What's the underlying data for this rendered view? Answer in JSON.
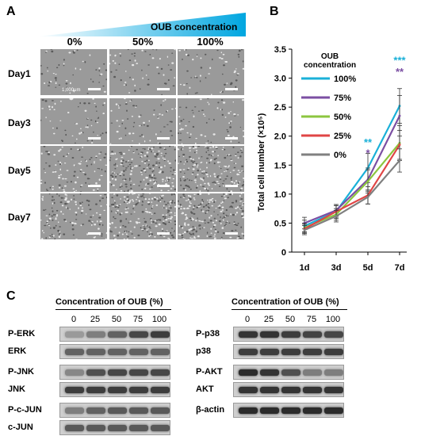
{
  "panelA": {
    "letter": "A",
    "gradient_label": "OUB concentration",
    "columns": [
      "0%",
      "50%",
      "100%"
    ],
    "rows": [
      "Day1",
      "Day3",
      "Day5",
      "Day7"
    ],
    "scale_label": "1,000μm",
    "cell_density": [
      [
        0.1,
        0.12,
        0.12
      ],
      [
        0.14,
        0.15,
        0.16
      ],
      [
        0.3,
        0.75,
        0.7
      ],
      [
        0.45,
        0.8,
        0.82
      ]
    ]
  },
  "panelB": {
    "letter": "B",
    "chart_data": {
      "type": "line",
      "x": [
        "1d",
        "3d",
        "5d",
        "7d"
      ],
      "ylabel": "Total cell number  (×10⁵)",
      "ylim": [
        0,
        3.5
      ],
      "yticks": [
        "0",
        "0.5",
        "1.0",
        "1.5",
        "2.0",
        "2.5",
        "3.0",
        "3.5"
      ],
      "legend_title": "OUB concentration",
      "legend_position": "top-left",
      "series": [
        {
          "name": "100%",
          "color": "#1ab0d8",
          "values": [
            0.45,
            0.7,
            1.45,
            2.52
          ],
          "err": [
            0.1,
            0.1,
            0.25,
            0.3
          ]
        },
        {
          "name": "75%",
          "color": "#7b4fa3",
          "values": [
            0.5,
            0.72,
            1.25,
            2.35
          ],
          "err": [
            0.1,
            0.1,
            0.2,
            0.35
          ]
        },
        {
          "name": "50%",
          "color": "#8cc63f",
          "values": [
            0.42,
            0.65,
            1.22,
            1.88
          ],
          "err": [
            0.08,
            0.1,
            0.2,
            0.3
          ]
        },
        {
          "name": "25%",
          "color": "#e04545",
          "values": [
            0.4,
            0.7,
            0.98,
            1.85
          ],
          "err": [
            0.08,
            0.12,
            0.15,
            0.25
          ]
        },
        {
          "name": "0%",
          "color": "#808080",
          "values": [
            0.38,
            0.62,
            0.95,
            1.58
          ],
          "err": [
            0.08,
            0.1,
            0.12,
            0.2
          ]
        }
      ],
      "annotations": [
        {
          "x": "5d",
          "text": "**",
          "color": "#1ab0d8",
          "y": 1.83
        },
        {
          "x": "5d",
          "text": "*",
          "color": "#7b4fa3",
          "y": 1.65
        },
        {
          "x": "7d",
          "text": "***",
          "color": "#1ab0d8",
          "y": 3.25
        },
        {
          "x": "7d",
          "text": "**",
          "color": "#7b4fa3",
          "y": 3.05
        }
      ]
    }
  },
  "panelC": {
    "letter": "C",
    "left": {
      "title": "Concentration of OUB (%)",
      "concentrations": [
        "0",
        "25",
        "50",
        "75",
        "100"
      ],
      "bands": [
        {
          "label": "P-ERK",
          "intensity": [
            0.25,
            0.4,
            0.55,
            0.7,
            0.75
          ]
        },
        {
          "label": "ERK",
          "intensity": [
            0.55,
            0.55,
            0.55,
            0.55,
            0.55
          ]
        },
        {
          "label": "P-JNK",
          "intensity": [
            0.35,
            0.65,
            0.7,
            0.7,
            0.7
          ]
        },
        {
          "label": "JNK",
          "intensity": [
            0.75,
            0.75,
            0.75,
            0.75,
            0.75
          ]
        },
        {
          "label": "P-c-JUN",
          "intensity": [
            0.4,
            0.55,
            0.6,
            0.6,
            0.6
          ]
        },
        {
          "label": "c-JUN",
          "intensity": [
            0.6,
            0.6,
            0.6,
            0.6,
            0.6
          ]
        }
      ]
    },
    "right": {
      "title": "Concentration of OUB (%)",
      "concentrations": [
        "0",
        "25",
        "50",
        "75",
        "100"
      ],
      "bands": [
        {
          "label": "P-p38",
          "intensity": [
            0.8,
            0.8,
            0.75,
            0.72,
            0.7
          ]
        },
        {
          "label": "p38",
          "intensity": [
            0.75,
            0.75,
            0.75,
            0.75,
            0.75
          ]
        },
        {
          "label": "P-AKT",
          "intensity": [
            0.85,
            0.8,
            0.65,
            0.4,
            0.4
          ]
        },
        {
          "label": "AKT",
          "intensity": [
            0.8,
            0.8,
            0.8,
            0.8,
            0.8
          ]
        },
        {
          "label": "β-actin",
          "intensity": [
            0.85,
            0.85,
            0.85,
            0.85,
            0.85
          ]
        }
      ]
    }
  }
}
